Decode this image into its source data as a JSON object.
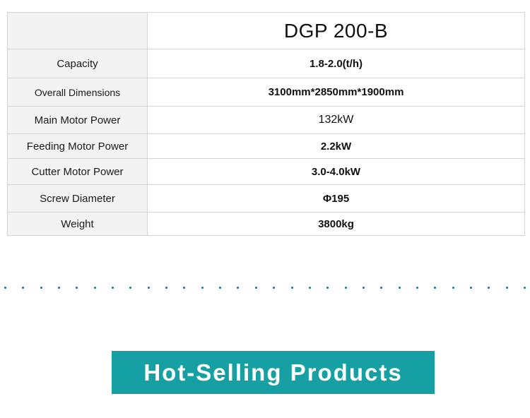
{
  "spec_table": {
    "model": "DGP 200-B",
    "rows": [
      {
        "label": "Capacity",
        "value": "1.8-2.0(t/h)"
      },
      {
        "label": "Overall Dimensions",
        "value": "3100mm*2850mm*1900mm"
      },
      {
        "label": "Main Motor Power",
        "value": "132kW"
      },
      {
        "label": "Feeding Motor Power",
        "value": "2.2kW"
      },
      {
        "label": "Cutter Motor Power",
        "value": "3.0-4.0kW"
      },
      {
        "label": "Screw Diameter",
        "value": "Φ195"
      },
      {
        "label": "Weight",
        "value": "3800kg"
      }
    ]
  },
  "divider": {
    "color": "#1f6f8b"
  },
  "banner": {
    "text": "Hot-Selling Products",
    "background": "#17a0a3"
  }
}
